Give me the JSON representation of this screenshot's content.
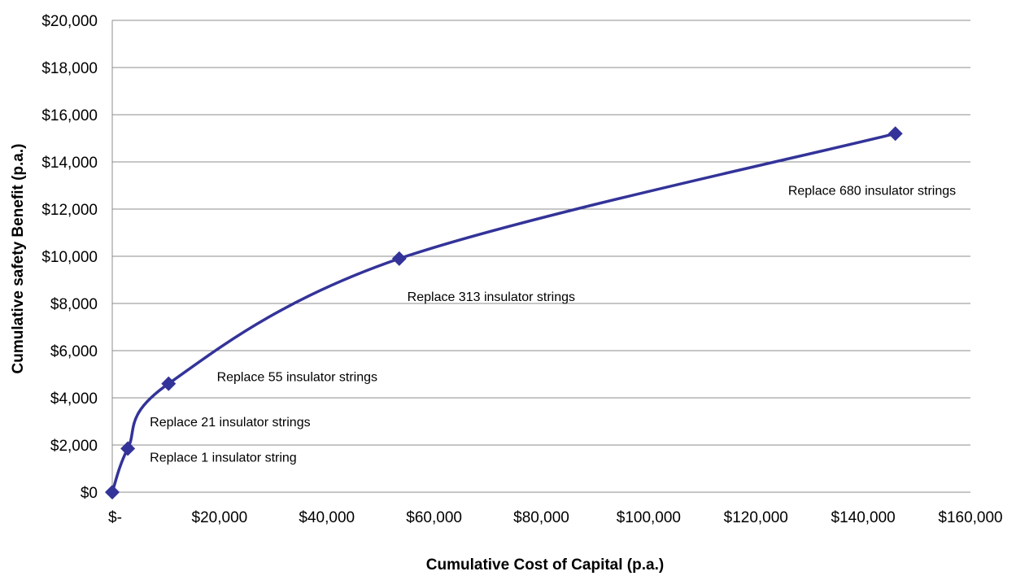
{
  "chart_data": {
    "type": "line",
    "xlabel": "Cumulative Cost of Capital (p.a.)",
    "ylabel": "Cumulative safety Benefit (p.a.)",
    "xlim": [
      0,
      160000
    ],
    "ylim": [
      0,
      20000
    ],
    "grid": "horizontal",
    "x_ticks": [
      {
        "value": 0,
        "label": "$-"
      },
      {
        "value": 20000,
        "label": "$20,000"
      },
      {
        "value": 40000,
        "label": "$40,000"
      },
      {
        "value": 60000,
        "label": "$60,000"
      },
      {
        "value": 80000,
        "label": "$80,000"
      },
      {
        "value": 100000,
        "label": "$100,000"
      },
      {
        "value": 120000,
        "label": "$120,000"
      },
      {
        "value": 140000,
        "label": "$140,000"
      },
      {
        "value": 160000,
        "label": "$160,000"
      }
    ],
    "y_ticks": [
      {
        "value": 0,
        "label": "$0"
      },
      {
        "value": 2000,
        "label": "$2,000"
      },
      {
        "value": 4000,
        "label": "$4,000"
      },
      {
        "value": 6000,
        "label": "$6,000"
      },
      {
        "value": 8000,
        "label": "$8,000"
      },
      {
        "value": 10000,
        "label": "$10,000"
      },
      {
        "value": 12000,
        "label": "$12,000"
      },
      {
        "value": 14000,
        "label": "$14,000"
      },
      {
        "value": 16000,
        "label": "$16,000"
      },
      {
        "value": 18000,
        "label": "$18,000"
      },
      {
        "value": 20000,
        "label": "$20,000"
      }
    ],
    "series": [
      {
        "color": "#333399",
        "marker": "diamond",
        "smooth": true,
        "points": [
          {
            "x": 0,
            "y": 0
          },
          {
            "x": 2900,
            "y": 1850
          },
          {
            "x": 10500,
            "y": 4600
          },
          {
            "x": 53500,
            "y": 9900
          },
          {
            "x": 146000,
            "y": 15200
          }
        ]
      }
    ],
    "annotations": [
      {
        "text": "Replace 1 insulator string",
        "x": 7000,
        "y": 1300
      },
      {
        "text": "Replace 21 insulator strings",
        "x": 7000,
        "y": 2800
      },
      {
        "text": "Replace 55 insulator strings",
        "x": 19500,
        "y": 4700
      },
      {
        "text": "Replace 313 insulator strings",
        "x": 55000,
        "y": 8100
      },
      {
        "text": "Replace 680 insulator strings",
        "x": 126000,
        "y": 12600
      }
    ]
  }
}
